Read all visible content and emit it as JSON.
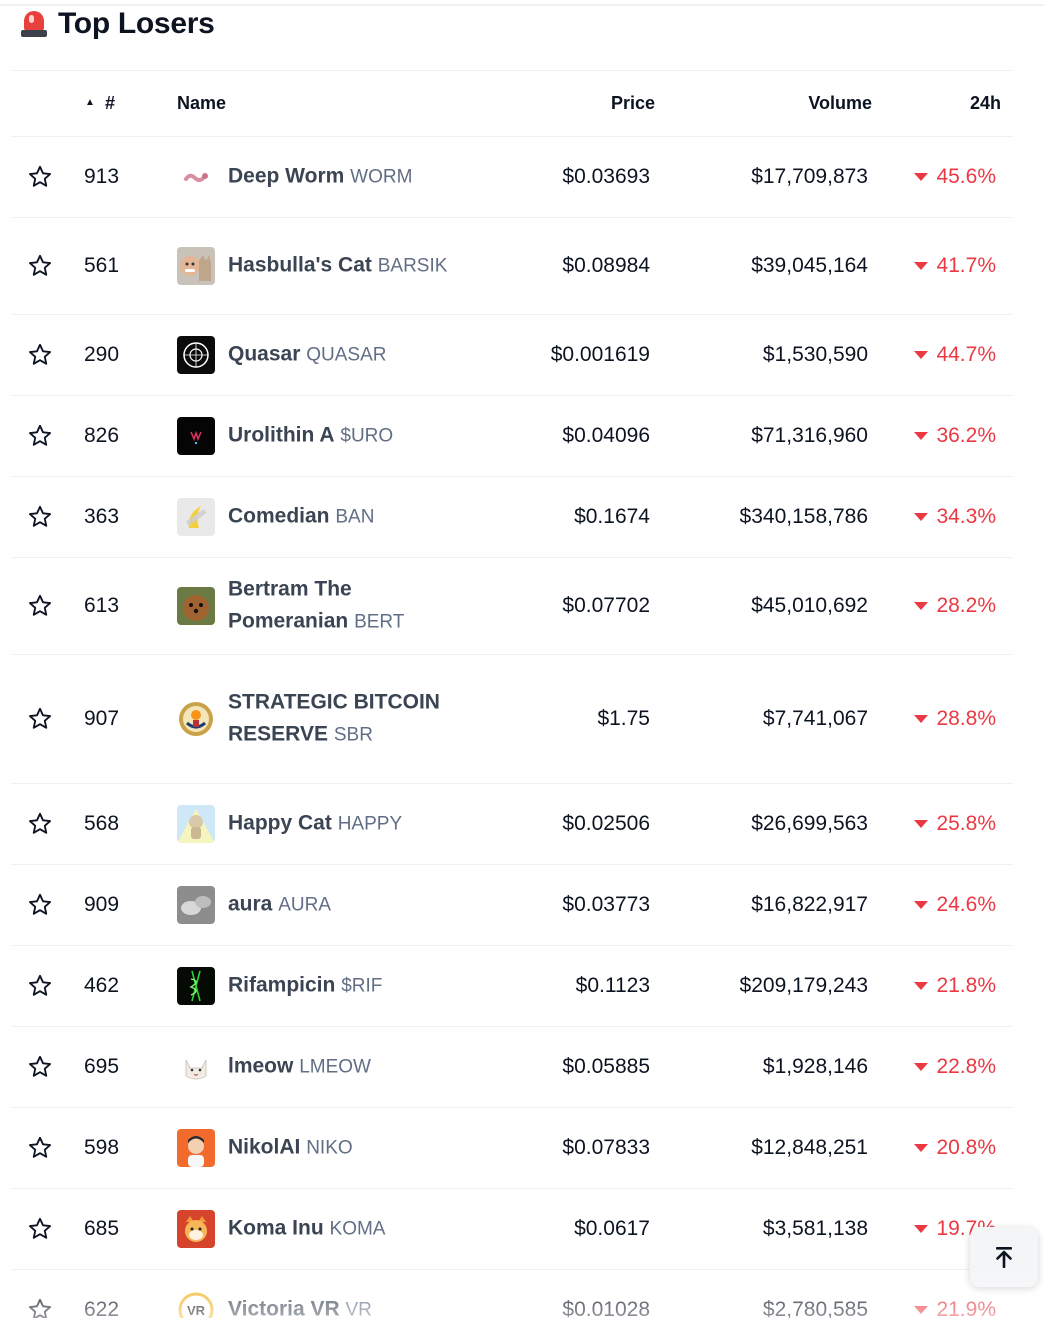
{
  "section": {
    "title": "Top Losers",
    "icon": "siren-icon"
  },
  "columns": {
    "sort_indicator": "▲",
    "rank": "#",
    "name": "Name",
    "price": "Price",
    "volume": "Volume",
    "change": "24h"
  },
  "colors": {
    "negative": "#ea3943",
    "text": "#0d1421",
    "muted": "#616e85"
  },
  "rows": [
    {
      "rank": "913",
      "name": "Deep Worm",
      "symbol": "WORM",
      "price": "$0.03693",
      "volume": "$17,709,873",
      "change": "45.6%",
      "logo": "worm"
    },
    {
      "rank": "561",
      "name": "Hasbulla's Cat",
      "symbol": "BARSIK",
      "price": "$0.08984",
      "volume": "$39,045,164",
      "change": "41.7%",
      "logo": "hasbulla"
    },
    {
      "rank": "290",
      "name": "Quasar",
      "symbol": "QUASAR",
      "price": "$0.001619",
      "volume": "$1,530,590",
      "change": "44.7%",
      "logo": "quasar"
    },
    {
      "rank": "826",
      "name": "Urolithin A",
      "symbol": "$URO",
      "price": "$0.04096",
      "volume": "$71,316,960",
      "change": "36.2%",
      "logo": "uro"
    },
    {
      "rank": "363",
      "name": "Comedian",
      "symbol": "BAN",
      "price": "$0.1674",
      "volume": "$340,158,786",
      "change": "34.3%",
      "logo": "banana"
    },
    {
      "rank": "613",
      "name": "Bertram The Pomeranian",
      "symbol": "BERT",
      "price": "$0.07702",
      "volume": "$45,010,692",
      "change": "28.2%",
      "logo": "bert"
    },
    {
      "rank": "907",
      "name": "STRATEGIC BITCOIN RESERVE",
      "symbol": "SBR",
      "price": "$1.75",
      "volume": "$7,741,067",
      "change": "28.8%",
      "logo": "seal"
    },
    {
      "rank": "568",
      "name": "Happy Cat",
      "symbol": "HAPPY",
      "price": "$0.02506",
      "volume": "$26,699,563",
      "change": "25.8%",
      "logo": "happycat"
    },
    {
      "rank": "909",
      "name": "aura",
      "symbol": "AURA",
      "price": "$0.03773",
      "volume": "$16,822,917",
      "change": "24.6%",
      "logo": "aura"
    },
    {
      "rank": "462",
      "name": "Rifampicin",
      "symbol": "$RIF",
      "price": "$0.1123",
      "volume": "$209,179,243",
      "change": "21.8%",
      "logo": "rif"
    },
    {
      "rank": "695",
      "name": "lmeow",
      "symbol": "LMEOW",
      "price": "$0.05885",
      "volume": "$1,928,146",
      "change": "22.8%",
      "logo": "lmeow"
    },
    {
      "rank": "598",
      "name": "NikolAI",
      "symbol": "NIKO",
      "price": "$0.07833",
      "volume": "$12,848,251",
      "change": "20.8%",
      "logo": "niko"
    },
    {
      "rank": "685",
      "name": "Koma Inu",
      "symbol": "KOMA",
      "price": "$0.0617",
      "volume": "$3,581,138",
      "change": "19.7%",
      "logo": "koma"
    },
    {
      "rank": "622",
      "name": "Victoria VR",
      "symbol": "VR",
      "price": "$0.01028",
      "volume": "$2,780,585",
      "change": "21.9%",
      "logo": "vr"
    }
  ],
  "scroll_top": {
    "icon": "arrow-to-top-icon"
  }
}
